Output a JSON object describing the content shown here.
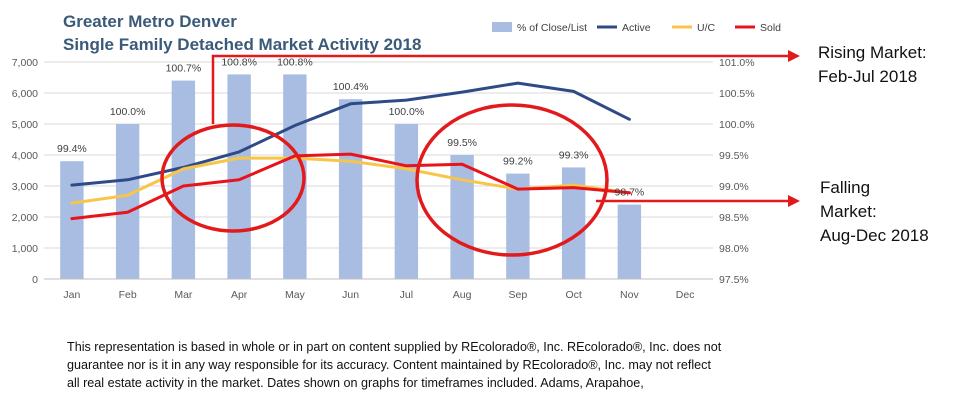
{
  "chart_data": {
    "type": "bar+line",
    "title": [
      "Greater Metro Denver",
      "Single Family Detached Market Activity 2018"
    ],
    "categories": [
      "Jan",
      "Feb",
      "Mar",
      "Apr",
      "May",
      "Jun",
      "Jul",
      "Aug",
      "Sep",
      "Oct",
      "Nov",
      "Dec"
    ],
    "left_axis": {
      "ticks": [
        "0",
        "1,000",
        "2,000",
        "3,000",
        "4,000",
        "5,000",
        "6,000",
        "7,000"
      ],
      "ylim": [
        0,
        7000
      ]
    },
    "right_axis": {
      "ticks": [
        "97.5%",
        "98.0%",
        "98.5%",
        "99.0%",
        "99.5%",
        "100.0%",
        "100.5%",
        "101.0%"
      ],
      "ylim": [
        97.5,
        101.0
      ]
    },
    "legend": [
      "% of Close/List",
      "Active",
      "U/C",
      "Sold"
    ],
    "legend_position": "top-right",
    "colors": {
      "bars": "#a9bde3",
      "active": "#2f4b87",
      "uc": "#f7c548",
      "sold": "#e8141b",
      "circle": "#e31a1c",
      "arrow": "#e31a1c"
    },
    "series": [
      {
        "name": "% of Close/List",
        "type": "bar",
        "axis": "right",
        "values": [
          99.4,
          100.0,
          100.7,
          100.8,
          100.8,
          100.4,
          100.0,
          99.5,
          99.2,
          99.3,
          98.7,
          null
        ],
        "labels": [
          "99.4%",
          "100.0%",
          "100.7%",
          "100.8%",
          "100.8%",
          "100.4%",
          "100.0%",
          "99.5%",
          "99.2%",
          "99.3%",
          "98.7%",
          ""
        ]
      },
      {
        "name": "Active",
        "type": "line",
        "axis": "left",
        "values": [
          3030,
          3200,
          3600,
          4100,
          4950,
          5650,
          5770,
          6030,
          6320,
          6050,
          5150,
          null
        ]
      },
      {
        "name": "U/C",
        "type": "line",
        "axis": "left",
        "values": [
          2450,
          2700,
          3550,
          3900,
          3900,
          3800,
          3550,
          3200,
          2900,
          3030,
          2780,
          null
        ]
      },
      {
        "name": "Sold",
        "type": "line",
        "axis": "left",
        "values": [
          1950,
          2150,
          3000,
          3200,
          3970,
          4030,
          3650,
          3700,
          2900,
          2950,
          2780,
          null
        ]
      }
    ],
    "annotations": [
      {
        "lines": [
          "Rising Market:",
          "Feb-Jul 2018"
        ]
      },
      {
        "lines": [
          "Falling",
          "Market:",
          "Aug-Dec 2018"
        ]
      }
    ]
  },
  "disclaimer": [
    "This representation is based in whole or in part on content supplied by REcolorado®, Inc. REcolorado®, Inc. does not",
    "guarantee nor is it in any way responsible for its accuracy. Content maintained by REcolorado®, Inc. may not reflect",
    "all real estate activity in the market. Dates shown on graphs for timeframes included.  Adams, Arapahoe,"
  ]
}
